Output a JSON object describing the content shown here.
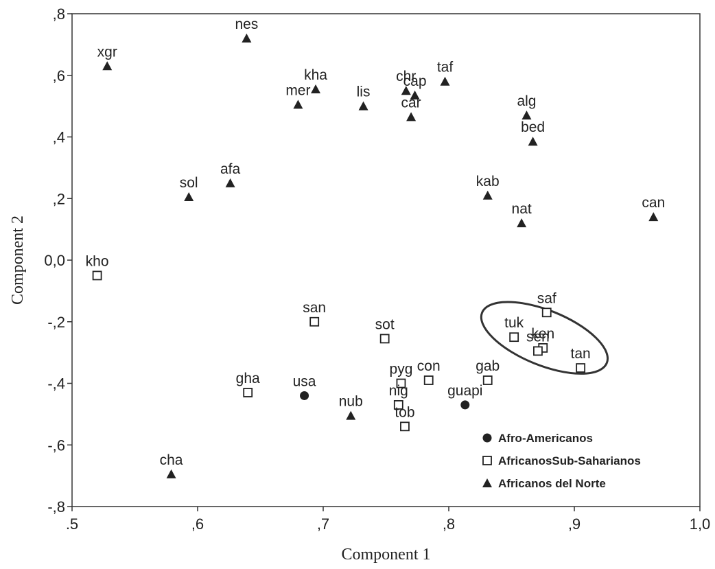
{
  "chart_data": {
    "type": "scatter",
    "xlabel": "Component 1",
    "ylabel": "Component 2",
    "xlim": [
      0.5,
      1.0
    ],
    "ylim": [
      -0.8,
      0.8
    ],
    "x_ticks": [
      ".5",
      ",6",
      ",7",
      ",8",
      ",9",
      "1,0"
    ],
    "y_ticks": [
      ",8",
      ",6",
      ",4",
      ",2",
      "0,0",
      "-,2",
      "-,4",
      "-,6",
      "-,8"
    ],
    "legend_position": "bottom-right",
    "series": [
      {
        "name": "Afro-Americanos",
        "marker": "filled-circle",
        "points": [
          {
            "label": "usa",
            "x": 0.685,
            "y": -0.44
          },
          {
            "label": "guapi",
            "x": 0.813,
            "y": -0.47
          }
        ]
      },
      {
        "name": "AfricanosSub-Saharianos",
        "marker": "open-square",
        "points": [
          {
            "label": "kho",
            "x": 0.52,
            "y": -0.05
          },
          {
            "label": "san",
            "x": 0.693,
            "y": -0.2
          },
          {
            "label": "sot",
            "x": 0.749,
            "y": -0.255
          },
          {
            "label": "gha",
            "x": 0.64,
            "y": -0.43
          },
          {
            "label": "pyg",
            "x": 0.762,
            "y": -0.4
          },
          {
            "label": "nig",
            "x": 0.76,
            "y": -0.47
          },
          {
            "label": "con",
            "x": 0.784,
            "y": -0.39
          },
          {
            "label": "tob",
            "x": 0.765,
            "y": -0.54
          },
          {
            "label": "gab",
            "x": 0.831,
            "y": -0.39
          },
          {
            "label": "saf",
            "x": 0.878,
            "y": -0.17
          },
          {
            "label": "tuk",
            "x": 0.852,
            "y": -0.25
          },
          {
            "label": "ken",
            "x": 0.875,
            "y": -0.285
          },
          {
            "label": "sen",
            "x": 0.871,
            "y": -0.295
          },
          {
            "label": "tan",
            "x": 0.905,
            "y": -0.35
          }
        ]
      },
      {
        "name": "Africanos del Norte",
        "marker": "filled-triangle",
        "points": [
          {
            "label": "xgr",
            "x": 0.528,
            "y": 0.63
          },
          {
            "label": "nes",
            "x": 0.639,
            "y": 0.72
          },
          {
            "label": "kha",
            "x": 0.694,
            "y": 0.555
          },
          {
            "label": "mer",
            "x": 0.68,
            "y": 0.505
          },
          {
            "label": "lis",
            "x": 0.732,
            "y": 0.5
          },
          {
            "label": "chr",
            "x": 0.766,
            "y": 0.55
          },
          {
            "label": "cap",
            "x": 0.773,
            "y": 0.535
          },
          {
            "label": "car",
            "x": 0.77,
            "y": 0.465
          },
          {
            "label": "taf",
            "x": 0.797,
            "y": 0.58
          },
          {
            "label": "alg",
            "x": 0.862,
            "y": 0.47
          },
          {
            "label": "bed",
            "x": 0.867,
            "y": 0.385
          },
          {
            "label": "sol",
            "x": 0.593,
            "y": 0.205
          },
          {
            "label": "afa",
            "x": 0.626,
            "y": 0.25
          },
          {
            "label": "kab",
            "x": 0.831,
            "y": 0.21
          },
          {
            "label": "nat",
            "x": 0.858,
            "y": 0.12
          },
          {
            "label": "can",
            "x": 0.963,
            "y": 0.14
          },
          {
            "label": "nub",
            "x": 0.722,
            "y": -0.505
          },
          {
            "label": "cha",
            "x": 0.579,
            "y": -0.695
          }
        ]
      }
    ],
    "annotation": {
      "shape": "ellipse",
      "encloses": [
        "saf",
        "tuk",
        "ken",
        "sen",
        "tan"
      ]
    }
  }
}
